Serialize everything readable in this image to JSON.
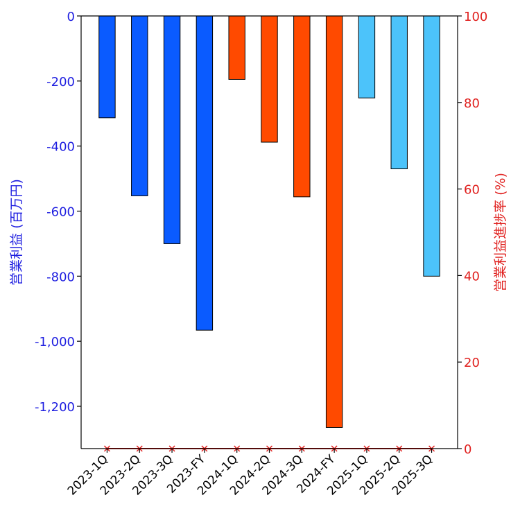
{
  "chart_data": {
    "type": "bar",
    "categories": [
      "2023-1Q",
      "2023-2Q",
      "2023-3Q",
      "2023-FY",
      "2024-1Q",
      "2024-2Q",
      "2024-3Q",
      "2024-FY",
      "2025-1Q",
      "2025-2Q",
      "2025-3Q"
    ],
    "values": [
      -313,
      -553,
      -700,
      -966,
      -195,
      -388,
      -556,
      -1265,
      -252,
      -470,
      -800
    ],
    "bar_colors": [
      "#0a5bff",
      "#0a5bff",
      "#0a5bff",
      "#0a5bff",
      "#ff4a00",
      "#ff4a00",
      "#ff4a00",
      "#ff4a00",
      "#4cc3fa",
      "#4cc3fa",
      "#4cc3fa"
    ],
    "progress_series": {
      "values": [
        0,
        0,
        0,
        0,
        0,
        0,
        0,
        0,
        0,
        0,
        0
      ],
      "color": "#e0201e",
      "marker": "x"
    },
    "ylabel": "営業利益 (百万円)",
    "ylabel_right": "営業利益進捗率 (%)",
    "ylim": [
      -1330,
      0
    ],
    "ylim_right": [
      0,
      100
    ],
    "yticks": [
      0,
      -200,
      -400,
      -600,
      -800,
      -1000,
      -1200
    ],
    "ytick_labels": [
      "0",
      "-200",
      "-400",
      "-600",
      "-800",
      "-1,000",
      "-1,200"
    ],
    "yticks_right": [
      0,
      20,
      40,
      60,
      80,
      100
    ],
    "ytick_labels_right": [
      "0",
      "20",
      "40",
      "60",
      "80",
      "100"
    ],
    "left_axis_color": "#1e1ee0",
    "right_axis_color": "#e0201e",
    "grid": false
  }
}
